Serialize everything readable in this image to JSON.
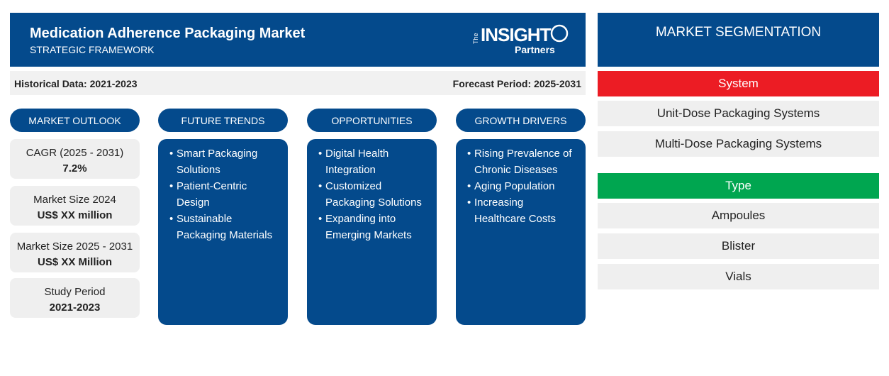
{
  "header": {
    "title": "Medication Adherence Packaging Market",
    "subtitle": "STRATEGIC FRAMEWORK",
    "logo": {
      "prefix": "The",
      "brand": "INSIGHT",
      "suffix": "Partners"
    }
  },
  "period_bar": {
    "historical": "Historical Data: 2021-2023",
    "forecast": "Forecast Period: 2025-2031"
  },
  "market_outlook": {
    "heading": "MARKET OUTLOOK",
    "cards": [
      {
        "label": "CAGR (2025 - 2031)",
        "value": "7.2%"
      },
      {
        "label": "Market Size 2024",
        "value": "US$ XX million"
      },
      {
        "label": "Market Size 2025 - 2031",
        "value": "US$ XX Million"
      },
      {
        "label": "Study Period",
        "value": "2021-2023"
      }
    ]
  },
  "columns": [
    {
      "heading": "FUTURE TRENDS",
      "items": [
        [
          "Smart Packaging",
          "Solutions"
        ],
        [
          "Patient-Centric",
          "Design"
        ],
        [
          "Sustainable",
          "Packaging Materials"
        ]
      ]
    },
    {
      "heading": "OPPORTUNITIES",
      "items": [
        [
          "Digital Health",
          "Integration"
        ],
        [
          "Customized",
          "Packaging Solutions"
        ],
        [
          "Expanding into",
          "Emerging Markets"
        ]
      ]
    },
    {
      "heading": "GROWTH DRIVERS",
      "items": [
        [
          "Rising Prevalence of",
          "Chronic Diseases"
        ],
        [
          "Aging Population"
        ],
        [
          "Increasing",
          "Healthcare Costs"
        ]
      ]
    }
  ],
  "segmentation": {
    "title": "MARKET SEGMENTATION",
    "groups": [
      {
        "name": "System",
        "items": [
          "Unit-Dose Packaging Systems",
          "Multi-Dose Packaging Systems"
        ]
      },
      {
        "name": "Type",
        "items": [
          "Ampoules",
          "Blister",
          "Vials"
        ]
      }
    ]
  }
}
